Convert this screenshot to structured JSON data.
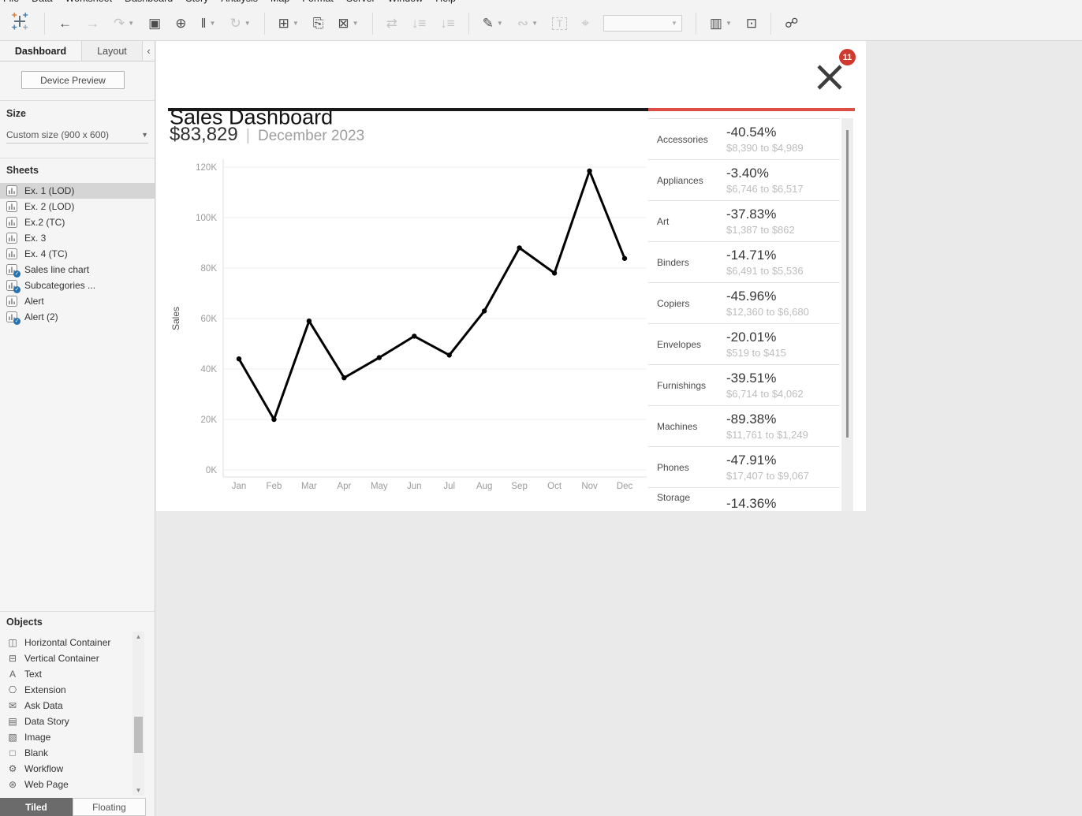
{
  "menu": {
    "items": [
      "File",
      "Data",
      "Worksheet",
      "Dashboard",
      "Story",
      "Analysis",
      "Map",
      "Format",
      "Server",
      "Window",
      "Help"
    ]
  },
  "toolbar": {
    "groups": [
      {
        "items": [
          {
            "name": "undo",
            "glyph": "←",
            "enabled": true
          },
          {
            "name": "redo",
            "glyph": "→",
            "enabled": false
          },
          {
            "name": "replay",
            "glyph": "↷",
            "enabled": false,
            "dropdown": true
          },
          {
            "name": "save",
            "glyph": "▣",
            "enabled": true
          },
          {
            "name": "new-data-source",
            "glyph": "⊕",
            "enabled": true
          },
          {
            "name": "pause-auto-updates",
            "glyph": "‖",
            "enabled": true,
            "dropdown": true
          },
          {
            "name": "run-auto-updates",
            "glyph": "↻",
            "enabled": false,
            "dropdown": true
          }
        ]
      },
      {
        "items": [
          {
            "name": "new-worksheet",
            "glyph": "⊞",
            "enabled": true,
            "dropdown": true
          },
          {
            "name": "duplicate-sheet",
            "glyph": "⎘",
            "enabled": true
          },
          {
            "name": "clear-sheet",
            "glyph": "⊠",
            "enabled": true,
            "dropdown": true
          }
        ]
      },
      {
        "items": [
          {
            "name": "swap-rows-columns",
            "glyph": "⇄",
            "enabled": false
          },
          {
            "name": "sort-ascending",
            "glyph": "↓≡",
            "enabled": false
          },
          {
            "name": "sort-descending",
            "glyph": "↓≡",
            "enabled": false
          }
        ]
      },
      {
        "items": [
          {
            "name": "highlight",
            "glyph": "✎",
            "enabled": true,
            "dropdown": true
          },
          {
            "name": "group-members",
            "glyph": "∾",
            "enabled": false,
            "dropdown": true
          },
          {
            "name": "text-object",
            "glyph": "T",
            "enabled": false,
            "boxed": true
          },
          {
            "name": "pin",
            "glyph": "⌖",
            "enabled": false
          },
          {
            "name": "fit-selector",
            "type": "select",
            "enabled": false
          }
        ]
      },
      {
        "items": [
          {
            "name": "show-cards",
            "glyph": "▥",
            "enabled": true,
            "dropdown": true
          },
          {
            "name": "presentation-mode",
            "glyph": "⊡",
            "enabled": true
          }
        ]
      },
      {
        "items": [
          {
            "name": "share-workbook",
            "glyph": "☍",
            "enabled": true
          }
        ]
      }
    ]
  },
  "sidebar": {
    "tabs": {
      "dashboard": "Dashboard",
      "layout": "Layout",
      "collapse": "‹"
    },
    "device_preview": "Device Preview",
    "size": {
      "label": "Size",
      "value": "Custom size (900 x 600)"
    },
    "sheets": {
      "label": "Sheets",
      "items": [
        {
          "name": "Ex. 1 (LOD)",
          "selected": true,
          "checked": false
        },
        {
          "name": "Ex. 2 (LOD)",
          "selected": false,
          "checked": false
        },
        {
          "name": "Ex.2 (TC)",
          "selected": false,
          "checked": false
        },
        {
          "name": "Ex. 3",
          "selected": false,
          "checked": false
        },
        {
          "name": "Ex. 4 (TC)",
          "selected": false,
          "checked": false
        },
        {
          "name": "Sales line chart",
          "selected": false,
          "checked": true
        },
        {
          "name": "Subcategories ...",
          "selected": false,
          "checked": true
        },
        {
          "name": "Alert",
          "selected": false,
          "checked": false
        },
        {
          "name": "Alert (2)",
          "selected": false,
          "checked": true
        }
      ]
    },
    "objects": {
      "label": "Objects",
      "items": [
        {
          "label": "Horizontal Container",
          "icon": "horizontal-container-icon",
          "glyph": "◫"
        },
        {
          "label": "Vertical Container",
          "icon": "vertical-container-icon",
          "glyph": "⊟"
        },
        {
          "label": "Text",
          "icon": "text-icon",
          "glyph": "A"
        },
        {
          "label": "Extension",
          "icon": "extension-icon",
          "glyph": "⎔"
        },
        {
          "label": "Ask Data",
          "icon": "ask-data-icon",
          "glyph": "✉"
        },
        {
          "label": "Data Story",
          "icon": "data-story-icon",
          "glyph": "▤"
        },
        {
          "label": "Image",
          "icon": "image-icon",
          "glyph": "▧"
        },
        {
          "label": "Blank",
          "icon": "blank-icon",
          "glyph": "□"
        },
        {
          "label": "Workflow",
          "icon": "workflow-icon",
          "glyph": "⚙"
        },
        {
          "label": "Web Page",
          "icon": "web-page-icon",
          "glyph": "⊛"
        }
      ]
    },
    "footer": {
      "tiled": "Tiled",
      "floating": "Floating",
      "active": "Tiled"
    }
  },
  "dashboard": {
    "title": "Sales Dashboard",
    "badge_count": "11",
    "metric": {
      "value": "$83,829",
      "separator": "|",
      "period": "December 2023"
    },
    "categories": [
      {
        "name": "Accessories",
        "pct": "-40.54%",
        "range": "$8,390 to $4,989"
      },
      {
        "name": "Appliances",
        "pct": "-3.40%",
        "range": "$6,746 to $6,517"
      },
      {
        "name": "Art",
        "pct": "-37.83%",
        "range": "$1,387 to $862"
      },
      {
        "name": "Binders",
        "pct": "-14.71%",
        "range": "$6,491 to $5,536"
      },
      {
        "name": "Copiers",
        "pct": "-45.96%",
        "range": "$12,360 to $6,680"
      },
      {
        "name": "Envelopes",
        "pct": "-20.01%",
        "range": "$519 to $415"
      },
      {
        "name": "Furnishings",
        "pct": "-39.51%",
        "range": "$6,714 to $4,062"
      },
      {
        "name": "Machines",
        "pct": "-89.38%",
        "range": "$11,761 to $1,249"
      },
      {
        "name": "Phones",
        "pct": "-47.91%",
        "range": "$17,407 to $9,067"
      },
      {
        "name": "Storage",
        "pct": "-14.36%",
        "range": ""
      }
    ]
  },
  "chart_data": {
    "type": "line",
    "x": [
      "Jan",
      "Feb",
      "Mar",
      "Apr",
      "May",
      "Jun",
      "Jul",
      "Aug",
      "Sep",
      "Oct",
      "Nov",
      "Dec"
    ],
    "values": [
      44000,
      20000,
      59000,
      36500,
      44500,
      53000,
      45500,
      63000,
      88000,
      78000,
      118500,
      83829
    ],
    "title": "",
    "xlabel": "",
    "ylabel": "Sales",
    "ylim": [
      0,
      120000
    ],
    "ytick_step": 20000,
    "yticks": [
      "0K",
      "20K",
      "40K",
      "60K",
      "80K",
      "100K",
      "120K"
    ],
    "grid": true,
    "legend": false,
    "line_color": "#000000"
  },
  "colors": {
    "accent_red": "#df4e44",
    "badge_red": "#d0392e",
    "check_blue": "#2472b2",
    "divider_black": "#1a1a1a"
  }
}
